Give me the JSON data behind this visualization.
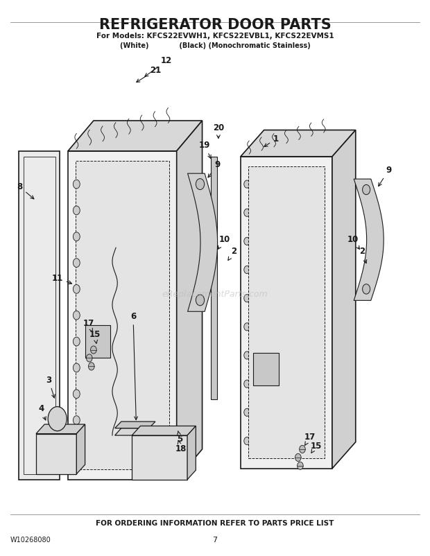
{
  "title": "REFRIGERATOR DOOR PARTS",
  "subtitle1": "For Models: KFCS22EVWH1, KFCS22EVBL1, KFCS22EVMS1",
  "subtitle2": "(White)             (Black) (Monochromatic Stainless)",
  "footer1": "FOR ORDERING INFORMATION REFER TO PARTS PRICE LIST",
  "footer2": "W10268080",
  "footer3": "7",
  "watermark": "eReplacementParts.com",
  "bg_color": "#ffffff",
  "line_color": "#1a1a1a",
  "label_color": "#1a1a1a"
}
